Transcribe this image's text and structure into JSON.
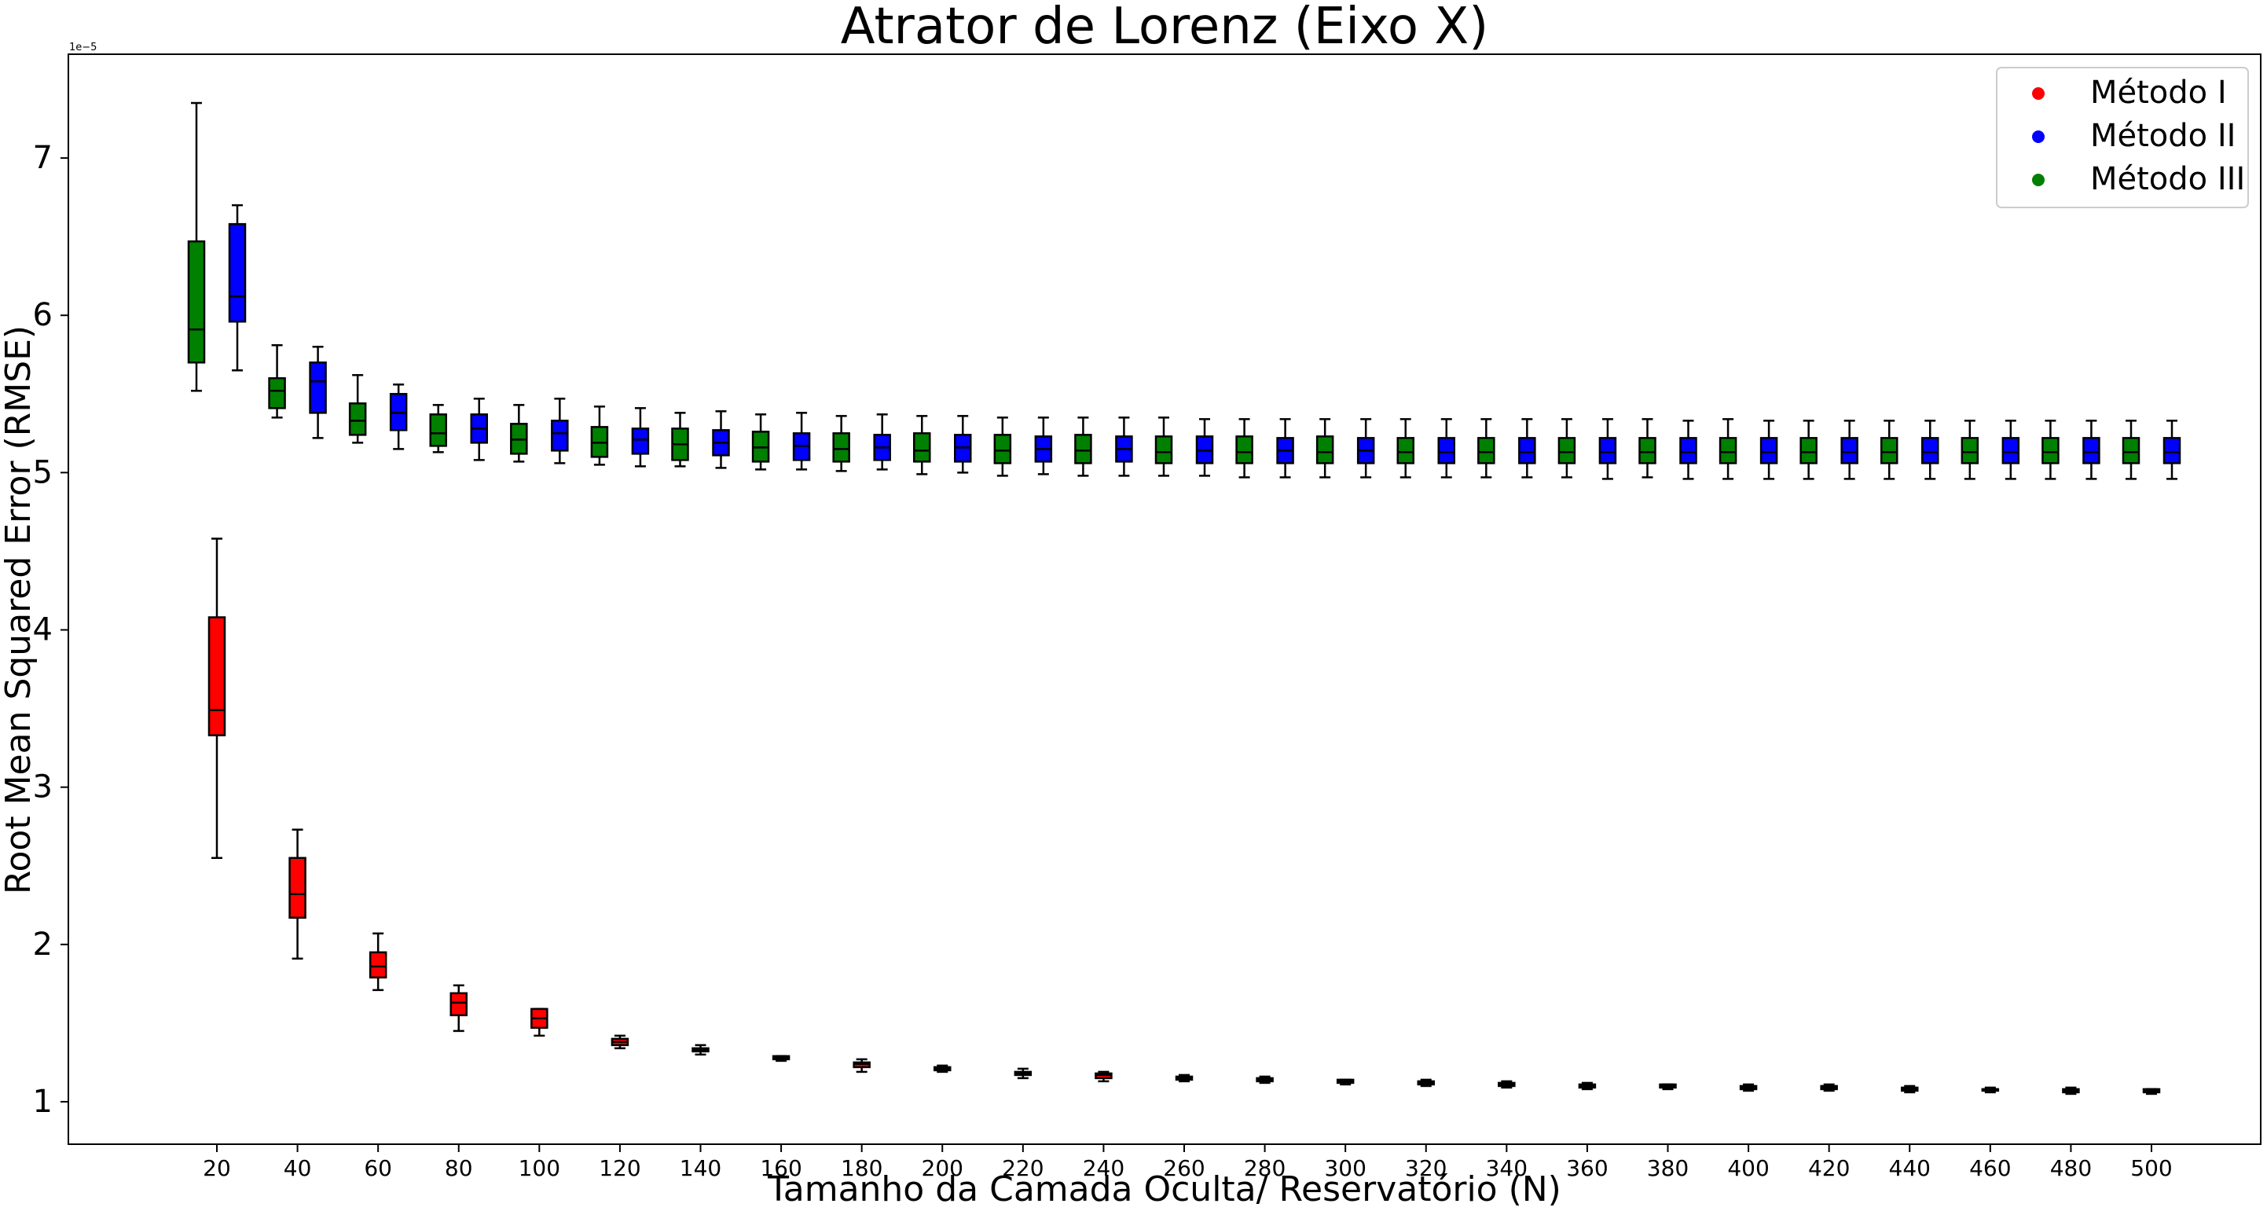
{
  "chart_data": {
    "type": "box",
    "title": "Atrator de Lorenz (Eixo X)",
    "xlabel": "Tamanho da Camada Oculta/ Reservatório (N)",
    "ylabel": "Root Mean Squared Error (RMSE)",
    "y_scale_label": "1e−5",
    "ylim": [
      0.73,
      7.66
    ],
    "y_ticks": [
      1,
      2,
      3,
      4,
      5,
      6,
      7
    ],
    "categories": [
      20,
      40,
      60,
      80,
      100,
      120,
      140,
      160,
      180,
      200,
      220,
      240,
      260,
      280,
      300,
      320,
      340,
      360,
      380,
      400,
      420,
      440,
      460,
      480,
      500
    ],
    "grid": false,
    "legend_position": "top-right",
    "series": [
      {
        "name": "Método I",
        "color": "#ff0000",
        "boxes": [
          {
            "n": 20,
            "min": 2.55,
            "q1": 3.33,
            "median": 3.49,
            "q3": 4.08,
            "max": 4.58
          },
          {
            "n": 40,
            "min": 1.91,
            "q1": 2.17,
            "median": 2.32,
            "q3": 2.55,
            "max": 2.73
          },
          {
            "n": 60,
            "min": 1.71,
            "q1": 1.79,
            "median": 1.86,
            "q3": 1.95,
            "max": 2.07
          },
          {
            "n": 80,
            "min": 1.45,
            "q1": 1.55,
            "median": 1.63,
            "q3": 1.69,
            "max": 1.74
          },
          {
            "n": 100,
            "min": 1.42,
            "q1": 1.47,
            "median": 1.53,
            "q3": 1.59,
            "max": 1.59
          },
          {
            "n": 120,
            "min": 1.34,
            "q1": 1.36,
            "median": 1.38,
            "q3": 1.4,
            "max": 1.42
          },
          {
            "n": 140,
            "min": 1.3,
            "q1": 1.32,
            "median": 1.33,
            "q3": 1.34,
            "max": 1.36
          },
          {
            "n": 160,
            "min": 1.26,
            "q1": 1.27,
            "median": 1.28,
            "q3": 1.29,
            "max": 1.29
          },
          {
            "n": 180,
            "min": 1.19,
            "q1": 1.22,
            "median": 1.24,
            "q3": 1.25,
            "max": 1.27
          },
          {
            "n": 200,
            "min": 1.19,
            "q1": 1.2,
            "median": 1.21,
            "q3": 1.22,
            "max": 1.23
          },
          {
            "n": 220,
            "min": 1.15,
            "q1": 1.17,
            "median": 1.18,
            "q3": 1.19,
            "max": 1.21
          },
          {
            "n": 240,
            "min": 1.13,
            "q1": 1.15,
            "median": 1.17,
            "q3": 1.18,
            "max": 1.19
          },
          {
            "n": 260,
            "min": 1.13,
            "q1": 1.14,
            "median": 1.15,
            "q3": 1.16,
            "max": 1.17
          },
          {
            "n": 280,
            "min": 1.12,
            "q1": 1.13,
            "median": 1.14,
            "q3": 1.15,
            "max": 1.16
          },
          {
            "n": 300,
            "min": 1.11,
            "q1": 1.12,
            "median": 1.13,
            "q3": 1.14,
            "max": 1.14
          },
          {
            "n": 320,
            "min": 1.1,
            "q1": 1.11,
            "median": 1.12,
            "q3": 1.13,
            "max": 1.14
          },
          {
            "n": 340,
            "min": 1.09,
            "q1": 1.1,
            "median": 1.11,
            "q3": 1.12,
            "max": 1.13
          },
          {
            "n": 360,
            "min": 1.08,
            "q1": 1.09,
            "median": 1.1,
            "q3": 1.11,
            "max": 1.12
          },
          {
            "n": 380,
            "min": 1.08,
            "q1": 1.09,
            "median": 1.1,
            "q3": 1.11,
            "max": 1.11
          },
          {
            "n": 400,
            "min": 1.07,
            "q1": 1.08,
            "median": 1.09,
            "q3": 1.1,
            "max": 1.11
          },
          {
            "n": 420,
            "min": 1.07,
            "q1": 1.08,
            "median": 1.09,
            "q3": 1.1,
            "max": 1.11
          },
          {
            "n": 440,
            "min": 1.06,
            "q1": 1.07,
            "median": 1.08,
            "q3": 1.09,
            "max": 1.1
          },
          {
            "n": 460,
            "min": 1.06,
            "q1": 1.07,
            "median": 1.08,
            "q3": 1.08,
            "max": 1.09
          },
          {
            "n": 480,
            "min": 1.05,
            "q1": 1.06,
            "median": 1.07,
            "q3": 1.08,
            "max": 1.09
          },
          {
            "n": 500,
            "min": 1.05,
            "q1": 1.06,
            "median": 1.07,
            "q3": 1.08,
            "max": 1.08
          }
        ]
      },
      {
        "name": "Método II",
        "color": "#0000ff",
        "boxes": [
          {
            "n": 20,
            "min": 5.65,
            "q1": 5.96,
            "median": 6.12,
            "q3": 6.58,
            "max": 6.7
          },
          {
            "n": 40,
            "min": 5.22,
            "q1": 5.38,
            "median": 5.58,
            "q3": 5.7,
            "max": 5.8
          },
          {
            "n": 60,
            "min": 5.15,
            "q1": 5.27,
            "median": 5.38,
            "q3": 5.5,
            "max": 5.56
          },
          {
            "n": 80,
            "min": 5.08,
            "q1": 5.19,
            "median": 5.28,
            "q3": 5.37,
            "max": 5.47
          },
          {
            "n": 100,
            "min": 5.06,
            "q1": 5.14,
            "median": 5.25,
            "q3": 5.33,
            "max": 5.47
          },
          {
            "n": 120,
            "min": 5.04,
            "q1": 5.12,
            "median": 5.21,
            "q3": 5.28,
            "max": 5.41
          },
          {
            "n": 140,
            "min": 5.03,
            "q1": 5.11,
            "median": 5.19,
            "q3": 5.27,
            "max": 5.39
          },
          {
            "n": 160,
            "min": 5.02,
            "q1": 5.08,
            "median": 5.17,
            "q3": 5.25,
            "max": 5.38
          },
          {
            "n": 180,
            "min": 5.02,
            "q1": 5.08,
            "median": 5.16,
            "q3": 5.24,
            "max": 5.37
          },
          {
            "n": 200,
            "min": 5.0,
            "q1": 5.07,
            "median": 5.16,
            "q3": 5.24,
            "max": 5.36
          },
          {
            "n": 220,
            "min": 4.99,
            "q1": 5.07,
            "median": 5.15,
            "q3": 5.23,
            "max": 5.35
          },
          {
            "n": 240,
            "min": 4.98,
            "q1": 5.07,
            "median": 5.15,
            "q3": 5.23,
            "max": 5.35
          },
          {
            "n": 260,
            "min": 4.98,
            "q1": 5.06,
            "median": 5.14,
            "q3": 5.23,
            "max": 5.34
          },
          {
            "n": 280,
            "min": 4.97,
            "q1": 5.06,
            "median": 5.14,
            "q3": 5.22,
            "max": 5.34
          },
          {
            "n": 300,
            "min": 4.97,
            "q1": 5.06,
            "median": 5.14,
            "q3": 5.22,
            "max": 5.34
          },
          {
            "n": 320,
            "min": 4.97,
            "q1": 5.06,
            "median": 5.13,
            "q3": 5.22,
            "max": 5.34
          },
          {
            "n": 340,
            "min": 4.97,
            "q1": 5.06,
            "median": 5.13,
            "q3": 5.22,
            "max": 5.34
          },
          {
            "n": 360,
            "min": 4.96,
            "q1": 5.06,
            "median": 5.13,
            "q3": 5.22,
            "max": 5.34
          },
          {
            "n": 380,
            "min": 4.96,
            "q1": 5.06,
            "median": 5.13,
            "q3": 5.22,
            "max": 5.33
          },
          {
            "n": 400,
            "min": 4.96,
            "q1": 5.06,
            "median": 5.13,
            "q3": 5.22,
            "max": 5.33
          },
          {
            "n": 420,
            "min": 4.96,
            "q1": 5.06,
            "median": 5.13,
            "q3": 5.22,
            "max": 5.33
          },
          {
            "n": 440,
            "min": 4.96,
            "q1": 5.06,
            "median": 5.13,
            "q3": 5.22,
            "max": 5.33
          },
          {
            "n": 460,
            "min": 4.96,
            "q1": 5.06,
            "median": 5.13,
            "q3": 5.22,
            "max": 5.33
          },
          {
            "n": 480,
            "min": 4.96,
            "q1": 5.06,
            "median": 5.13,
            "q3": 5.22,
            "max": 5.33
          },
          {
            "n": 500,
            "min": 4.96,
            "q1": 5.06,
            "median": 5.13,
            "q3": 5.22,
            "max": 5.33
          }
        ]
      },
      {
        "name": "Método III",
        "color": "#008000",
        "boxes": [
          {
            "n": 20,
            "min": 5.52,
            "q1": 5.7,
            "median": 5.91,
            "q3": 6.47,
            "max": 7.35
          },
          {
            "n": 40,
            "min": 5.35,
            "q1": 5.41,
            "median": 5.52,
            "q3": 5.6,
            "max": 5.81
          },
          {
            "n": 60,
            "min": 5.19,
            "q1": 5.24,
            "median": 5.33,
            "q3": 5.44,
            "max": 5.62
          },
          {
            "n": 80,
            "min": 5.13,
            "q1": 5.17,
            "median": 5.25,
            "q3": 5.37,
            "max": 5.43
          },
          {
            "n": 100,
            "min": 5.07,
            "q1": 5.12,
            "median": 5.21,
            "q3": 5.31,
            "max": 5.43
          },
          {
            "n": 120,
            "min": 5.05,
            "q1": 5.1,
            "median": 5.19,
            "q3": 5.29,
            "max": 5.42
          },
          {
            "n": 140,
            "min": 5.04,
            "q1": 5.08,
            "median": 5.18,
            "q3": 5.28,
            "max": 5.38
          },
          {
            "n": 160,
            "min": 5.02,
            "q1": 5.07,
            "median": 5.16,
            "q3": 5.26,
            "max": 5.37
          },
          {
            "n": 180,
            "min": 5.01,
            "q1": 5.07,
            "median": 5.15,
            "q3": 5.25,
            "max": 5.36
          },
          {
            "n": 200,
            "min": 4.99,
            "q1": 5.07,
            "median": 5.14,
            "q3": 5.25,
            "max": 5.36
          },
          {
            "n": 220,
            "min": 4.98,
            "q1": 5.06,
            "median": 5.14,
            "q3": 5.24,
            "max": 5.35
          },
          {
            "n": 240,
            "min": 4.98,
            "q1": 5.06,
            "median": 5.14,
            "q3": 5.24,
            "max": 5.35
          },
          {
            "n": 260,
            "min": 4.98,
            "q1": 5.06,
            "median": 5.13,
            "q3": 5.23,
            "max": 5.35
          },
          {
            "n": 280,
            "min": 4.97,
            "q1": 5.06,
            "median": 5.13,
            "q3": 5.23,
            "max": 5.34
          },
          {
            "n": 300,
            "min": 4.97,
            "q1": 5.06,
            "median": 5.13,
            "q3": 5.23,
            "max": 5.34
          },
          {
            "n": 320,
            "min": 4.97,
            "q1": 5.06,
            "median": 5.13,
            "q3": 5.22,
            "max": 5.34
          },
          {
            "n": 340,
            "min": 4.97,
            "q1": 5.06,
            "median": 5.13,
            "q3": 5.22,
            "max": 5.34
          },
          {
            "n": 360,
            "min": 4.97,
            "q1": 5.06,
            "median": 5.13,
            "q3": 5.22,
            "max": 5.34
          },
          {
            "n": 380,
            "min": 4.97,
            "q1": 5.06,
            "median": 5.13,
            "q3": 5.22,
            "max": 5.34
          },
          {
            "n": 400,
            "min": 4.96,
            "q1": 5.06,
            "median": 5.13,
            "q3": 5.22,
            "max": 5.34
          },
          {
            "n": 420,
            "min": 4.96,
            "q1": 5.06,
            "median": 5.13,
            "q3": 5.22,
            "max": 5.33
          },
          {
            "n": 440,
            "min": 4.96,
            "q1": 5.06,
            "median": 5.13,
            "q3": 5.22,
            "max": 5.33
          },
          {
            "n": 460,
            "min": 4.96,
            "q1": 5.06,
            "median": 5.13,
            "q3": 5.22,
            "max": 5.33
          },
          {
            "n": 480,
            "min": 4.96,
            "q1": 5.06,
            "median": 5.13,
            "q3": 5.22,
            "max": 5.33
          },
          {
            "n": 500,
            "min": 4.96,
            "q1": 5.06,
            "median": 5.13,
            "q3": 5.22,
            "max": 5.33
          }
        ]
      }
    ]
  }
}
